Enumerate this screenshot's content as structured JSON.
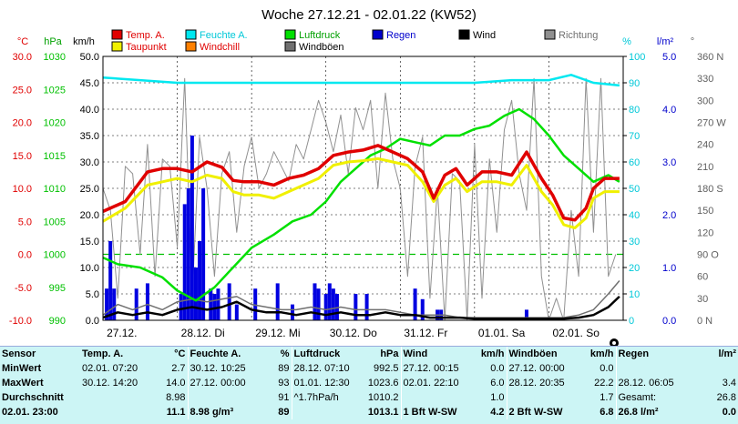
{
  "chart_data": {
    "type": "line",
    "title": "Woche 27.12.21 - 02.01.22 (KW52)",
    "x_labels": [
      "27.12.",
      "28.12. Di",
      "29.12. Mi",
      "30.12. Do",
      "31.12. Fr",
      "01.01. Sa",
      "02.01. So"
    ],
    "axes": {
      "temp": {
        "unit": "°C",
        "min": -10,
        "max": 30,
        "ticks": [
          "30.0",
          "25.0",
          "20.0",
          "15.0",
          "10.0",
          "5.0",
          "0.0",
          "-5.0",
          "-10.0"
        ],
        "color": "#e00000"
      },
      "pressure": {
        "unit": "hPa",
        "min": 990,
        "max": 1030,
        "ticks": [
          "1030",
          "1025",
          "1020",
          "1015",
          "1010",
          "1005",
          "1000",
          "995",
          "990"
        ],
        "color": "#00c000"
      },
      "wind": {
        "unit": "km/h",
        "min": 0,
        "max": 50,
        "ticks": [
          "50.0",
          "45.0",
          "40.0",
          "35.0",
          "30.0",
          "25.0",
          "20.0",
          "15.0",
          "10.0",
          "5.0",
          "0.0"
        ],
        "color": "#000000"
      },
      "humidity": {
        "unit": "%",
        "min": 0,
        "max": 100,
        "ticks": [
          "100",
          "90",
          "80",
          "70",
          "60",
          "50",
          "40",
          "30",
          "20",
          "10",
          "0"
        ],
        "color": "#00c8d8"
      },
      "rain": {
        "unit": "l/m²",
        "min": 0,
        "max": 5,
        "ticks": [
          "5.0",
          "4.0",
          "3.0",
          "2.0",
          "1.0",
          "0.0"
        ],
        "color": "#0000cc"
      },
      "direction": {
        "unit": "°",
        "min": 0,
        "max": 360,
        "ticks": [
          "360 N",
          "330",
          "300",
          "270 W",
          "240",
          "210",
          "180 S",
          "150",
          "120",
          "90 O",
          "60",
          "30",
          "0 N"
        ],
        "color": "#606060"
      }
    },
    "reference_line": {
      "axis": "temp",
      "value": 0,
      "color": "#00c000"
    },
    "series": [
      {
        "name": "Temp. A.",
        "axis": "temp",
        "color": "#e00000",
        "x": [
          0,
          0.3,
          0.6,
          0.8,
          1.0,
          1.2,
          1.4,
          1.6,
          1.75,
          1.9,
          2.1,
          2.3,
          2.5,
          2.7,
          2.9,
          3.1,
          3.3,
          3.5,
          3.7,
          3.9,
          4.1,
          4.3,
          4.45,
          4.6,
          4.75,
          4.9,
          5.1,
          5.3,
          5.5,
          5.7,
          5.9,
          6.05,
          6.2,
          6.35,
          6.5,
          6.6,
          6.75,
          6.95
        ],
        "y": [
          6.5,
          8,
          12.5,
          13,
          13,
          12.5,
          14,
          13.2,
          11.2,
          11,
          11,
          10.5,
          11.5,
          12,
          13,
          15,
          15.5,
          15.8,
          16.5,
          15.5,
          14.5,
          12.5,
          8.5,
          12,
          13,
          10.5,
          12.5,
          12.5,
          12,
          15.5,
          11.5,
          9,
          5.5,
          5.2,
          7,
          10,
          11.5,
          11.5
        ]
      },
      {
        "name": "Taupunkt",
        "axis": "temp",
        "color": "#f0f000",
        "x": [
          0,
          0.3,
          0.6,
          0.8,
          1.0,
          1.2,
          1.4,
          1.6,
          1.75,
          1.9,
          2.1,
          2.3,
          2.5,
          2.7,
          2.9,
          3.1,
          3.3,
          3.5,
          3.7,
          3.9,
          4.1,
          4.3,
          4.45,
          4.6,
          4.75,
          4.9,
          5.1,
          5.3,
          5.5,
          5.7,
          5.9,
          6.05,
          6.2,
          6.35,
          6.5,
          6.6,
          6.75,
          6.95
        ],
        "y": [
          5,
          7,
          10.5,
          11,
          11.5,
          11,
          12,
          11.5,
          9.5,
          9,
          9,
          8.5,
          9.5,
          10.5,
          11.5,
          13.5,
          14,
          14.2,
          14.5,
          14,
          13.5,
          11,
          8,
          10.5,
          11.5,
          9.5,
          11,
          11,
          10.5,
          13.5,
          9.5,
          7.5,
          4.5,
          4.0,
          5.5,
          8.5,
          9.5,
          9.5
        ]
      },
      {
        "name": "Feuchte A.",
        "axis": "humidity",
        "color": "#00e8f0",
        "x": [
          0,
          0.5,
          1,
          1.5,
          2,
          2.5,
          3,
          3.5,
          4,
          4.5,
          5,
          5.5,
          6,
          6.3,
          6.6,
          6.95
        ],
        "y": [
          92,
          91,
          90,
          90,
          90,
          90,
          90,
          90,
          90,
          90,
          90,
          91,
          91,
          93,
          90,
          89
        ]
      },
      {
        "name": "Luftdruck",
        "axis": "pressure",
        "color": "#00e000",
        "x": [
          0,
          0.2,
          0.5,
          0.8,
          1.0,
          1.25,
          1.5,
          1.75,
          2.0,
          2.3,
          2.55,
          2.8,
          3.0,
          3.2,
          3.4,
          3.6,
          3.8,
          4.0,
          4.2,
          4.4,
          4.6,
          4.8,
          5.0,
          5.2,
          5.4,
          5.6,
          5.8,
          6.0,
          6.2,
          6.4,
          6.6,
          6.8,
          6.95
        ],
        "y": [
          999.5,
          998.5,
          998,
          996.5,
          994.5,
          993,
          995,
          998,
          1001,
          1003,
          1005,
          1006,
          1008,
          1011,
          1013,
          1015,
          1016,
          1017.5,
          1017,
          1016.5,
          1018,
          1018,
          1019,
          1019.5,
          1021,
          1022,
          1020.5,
          1018,
          1015,
          1013,
          1011,
          1012,
          1011
        ]
      },
      {
        "name": "Wind",
        "axis": "wind",
        "color": "#000000",
        "x": [
          0,
          0.2,
          0.4,
          0.6,
          0.8,
          1.0,
          1.2,
          1.4,
          1.6,
          1.8,
          2.0,
          2.2,
          2.4,
          2.6,
          2.8,
          3.0,
          3.2,
          3.4,
          3.6,
          3.8,
          4.0,
          4.2,
          4.4,
          4.6,
          4.8,
          5.0,
          5.2,
          5.4,
          5.6,
          5.8,
          6.0,
          6.2,
          6.4,
          6.6,
          6.8,
          6.95
        ],
        "y": [
          0.5,
          1.5,
          1,
          1.5,
          1,
          2,
          2.5,
          2,
          2.5,
          3.5,
          2,
          1.5,
          1.5,
          1,
          1.5,
          1,
          1.5,
          1,
          1,
          1.5,
          1,
          1,
          0.5,
          0.5,
          0.5,
          0.3,
          0.3,
          0.3,
          0.3,
          0.3,
          0.3,
          0.3,
          0.5,
          1,
          2.5,
          4.5
        ]
      },
      {
        "name": "Windchill",
        "axis": "temp",
        "color": "#ff8000",
        "x": [],
        "y": []
      },
      {
        "name": "Windböen",
        "axis": "wind",
        "color": "#707070",
        "x": [
          0,
          0.2,
          0.4,
          0.6,
          0.8,
          1.0,
          1.2,
          1.4,
          1.6,
          1.8,
          2.0,
          2.2,
          2.4,
          2.6,
          2.8,
          3.0,
          3.2,
          3.4,
          3.6,
          3.8,
          4.0,
          4.2,
          4.4,
          4.6,
          4.8,
          5.0,
          5.2,
          5.4,
          5.6,
          5.8,
          6.0,
          6.2,
          6.4,
          6.6,
          6.8,
          6.95
        ],
        "y": [
          1,
          3,
          2,
          3,
          2,
          3.5,
          4,
          3.5,
          4,
          4.5,
          3,
          2.5,
          2,
          2,
          2.5,
          2,
          2.5,
          2,
          2,
          2,
          1.5,
          1,
          1,
          1,
          0.5,
          0.5,
          0.5,
          0.5,
          0.5,
          0.5,
          0.5,
          0.5,
          1,
          2,
          5,
          7.5
        ]
      },
      {
        "name": "Richtung",
        "axis": "direction",
        "color": "#909090",
        "x": [
          0,
          0.1,
          0.2,
          0.3,
          0.4,
          0.5,
          0.6,
          0.7,
          0.8,
          0.9,
          1.0,
          1.1,
          1.2,
          1.3,
          1.4,
          1.5,
          1.6,
          1.7,
          1.8,
          1.9,
          2.0,
          2.1,
          2.2,
          2.3,
          2.4,
          2.5,
          2.6,
          2.7,
          2.8,
          2.9,
          3.0,
          3.1,
          3.2,
          3.3,
          3.4,
          3.5,
          3.6,
          3.7,
          3.8,
          3.9,
          4.0,
          4.1,
          4.2,
          4.3,
          4.4,
          4.5,
          4.6,
          4.7,
          4.8,
          4.9,
          5.0,
          5.1,
          5.2,
          5.3,
          5.4,
          5.5,
          5.6,
          5.7,
          5.8,
          5.9,
          6.0,
          6.1,
          6.2,
          6.3,
          6.4,
          6.5,
          6.6,
          6.7,
          6.8,
          6.9
        ],
        "y": [
          180,
          150,
          30,
          210,
          200,
          90,
          240,
          60,
          220,
          210,
          100,
          330,
          30,
          250,
          180,
          60,
          200,
          230,
          120,
          210,
          250,
          180,
          200,
          230,
          210,
          190,
          240,
          220,
          260,
          300,
          270,
          230,
          280,
          200,
          290,
          260,
          300,
          180,
          310,
          220,
          180,
          60,
          210,
          250,
          30,
          180,
          0,
          200,
          190,
          0,
          240,
          30,
          220,
          120,
          260,
          300,
          200,
          150,
          330,
          60,
          0,
          30,
          0,
          150,
          60,
          330,
          120,
          330,
          60,
          90
        ]
      }
    ],
    "rain": {
      "x": [
        0.05,
        0.1,
        0.15,
        0.45,
        0.6,
        1.05,
        1.1,
        1.15,
        1.2,
        1.25,
        1.3,
        1.35,
        1.45,
        1.5,
        1.55,
        1.7,
        1.8,
        2.05,
        2.35,
        2.55,
        2.85,
        2.9,
        3.0,
        3.05,
        3.1,
        3.15,
        3.4,
        3.55,
        4.2,
        4.3,
        4.5,
        4.55,
        5.7
      ],
      "y": [
        0.6,
        1.5,
        0.6,
        0.6,
        0.7,
        0.5,
        2.2,
        2.5,
        3.5,
        1.0,
        1.5,
        2.5,
        0.6,
        0.5,
        0.6,
        0.7,
        0.3,
        0.6,
        0.7,
        0.3,
        0.7,
        0.6,
        0.5,
        0.7,
        0.6,
        0.5,
        0.5,
        0.5,
        0.6,
        0.4,
        0.2,
        0.2,
        0.2
      ]
    }
  },
  "stats": {
    "header": [
      "Sensor",
      "Temp. A.",
      "°C",
      "Feuchte A.",
      "%",
      "Luftdruck",
      "hPa",
      "Wind",
      "km/h",
      "Windböen",
      "km/h",
      "Regen",
      "l/m²"
    ],
    "rows": [
      [
        "MinWert",
        "02.01. 07:20",
        "2.7",
        "30.12. 10:25",
        "89",
        "28.12. 07:10",
        "992.5",
        "27.12. 00:15",
        "0.0",
        "27.12. 00:00",
        "0.0",
        "",
        ""
      ],
      [
        "MaxWert",
        "30.12. 14:20",
        "14.0",
        "27.12. 00:00",
        "93",
        "01.01. 12:30",
        "1023.6",
        "02.01. 22:10",
        "6.0",
        "28.12. 20:35",
        "22.2",
        "28.12. 06:05",
        "3.4"
      ],
      [
        "Durchschnitt",
        "",
        "8.98",
        "",
        "91",
        "^1.7hPa/h",
        "1010.2",
        "",
        "1.0",
        "",
        "1.7",
        "Gesamt:",
        "26.8"
      ],
      [
        "02.01. 23:00",
        "",
        "11.1",
        "8.98 g/m³",
        "89",
        "",
        "1013.1",
        "1 Bft W-SW",
        "4.2",
        "2 Bft W-SW",
        "6.8",
        "26.8 l/m²",
        "0.0"
      ]
    ]
  }
}
